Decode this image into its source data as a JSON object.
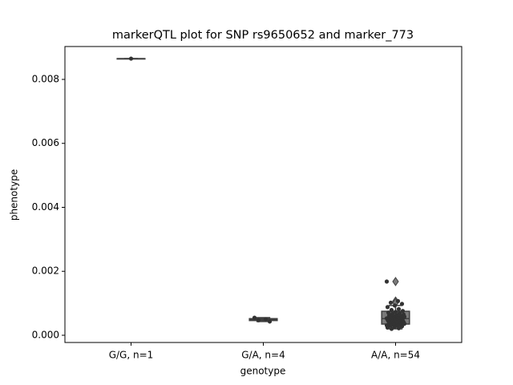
{
  "chart_data": {
    "type": "box",
    "title": "markerQTL plot for SNP rs9650652 and marker_773",
    "x_label": "genotype",
    "y_label": "phenotype",
    "categories": [
      "G/G, n=1",
      "G/A, n=4",
      "A/A, n=54"
    ],
    "ylim": [
      -0.000226,
      0.009028
    ],
    "yticks": [
      {
        "value": 0,
        "label": "0.000"
      },
      0.002,
      0.004,
      0.006,
      0.008
    ],
    "box_color": "#7a7a7a",
    "edge_color": "#3f3f3f",
    "point_color": "#333333",
    "boxes": [
      {
        "whisker_low": 0.00865,
        "q1": 0.00865,
        "median": 0.00865,
        "q3": 0.00865,
        "whisker_high": 0.00865,
        "outliers": []
      },
      {
        "whisker_low": 0.00043,
        "q1": 0.00046,
        "median": 0.00049,
        "q3": 0.00052,
        "whisker_high": 0.00055,
        "outliers": []
      },
      {
        "whisker_low": 0.0002,
        "q1": 0.00035,
        "median": 0.00052,
        "q3": 0.00075,
        "whisker_high": 0.00093,
        "outliers": [
          0.00168,
          0.00107,
          0.00102
        ]
      }
    ],
    "points": [
      [
        0.00865
      ],
      [
        0.00055,
        0.0005,
        0.00047,
        0.00043
      ],
      [
        0.00168,
        0.00107,
        0.00102,
        0.00098,
        0.00093,
        0.00088,
        0.00082,
        0.00079,
        0.00076,
        0.00073,
        0.00071,
        0.00069,
        0.00067,
        0.00065,
        0.00063,
        0.00062,
        0.0006,
        0.00059,
        0.00058,
        0.00057,
        0.00056,
        0.00055,
        0.00054,
        0.00053,
        0.00052,
        0.00052,
        0.00051,
        0.0005,
        0.00049,
        0.00048,
        0.00047,
        0.00046,
        0.00045,
        0.00044,
        0.00043,
        0.00042,
        0.00041,
        0.0004,
        0.00039,
        0.00038,
        0.00037,
        0.00036,
        0.00035,
        0.00034,
        0.00033,
        0.00032,
        0.00031,
        0.0003,
        0.00029,
        0.00028,
        0.00026,
        0.00024,
        0.00022,
        0.0002
      ]
    ]
  }
}
